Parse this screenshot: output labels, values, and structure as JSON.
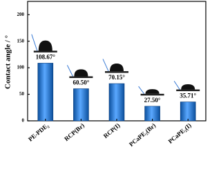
{
  "chart_data": {
    "type": "bar",
    "y_label": "Contact angle / °",
    "categories": [
      "PE-PDE₂",
      "RCP(Br)",
      "RCP(I)",
      "PCaPE₂(Br)",
      "PCaPE₂(I)"
    ],
    "values": [
      108.67,
      60.5,
      70.15,
      27.5,
      35.71
    ],
    "value_labels": [
      "108.67°",
      "60.50°",
      "70.15°",
      "27.50°",
      "35.71°"
    ],
    "color": "#1f77d4",
    "ylim": [
      0,
      225
    ],
    "yticks": [
      0,
      50,
      100,
      150,
      200
    ],
    "grid": false
  }
}
